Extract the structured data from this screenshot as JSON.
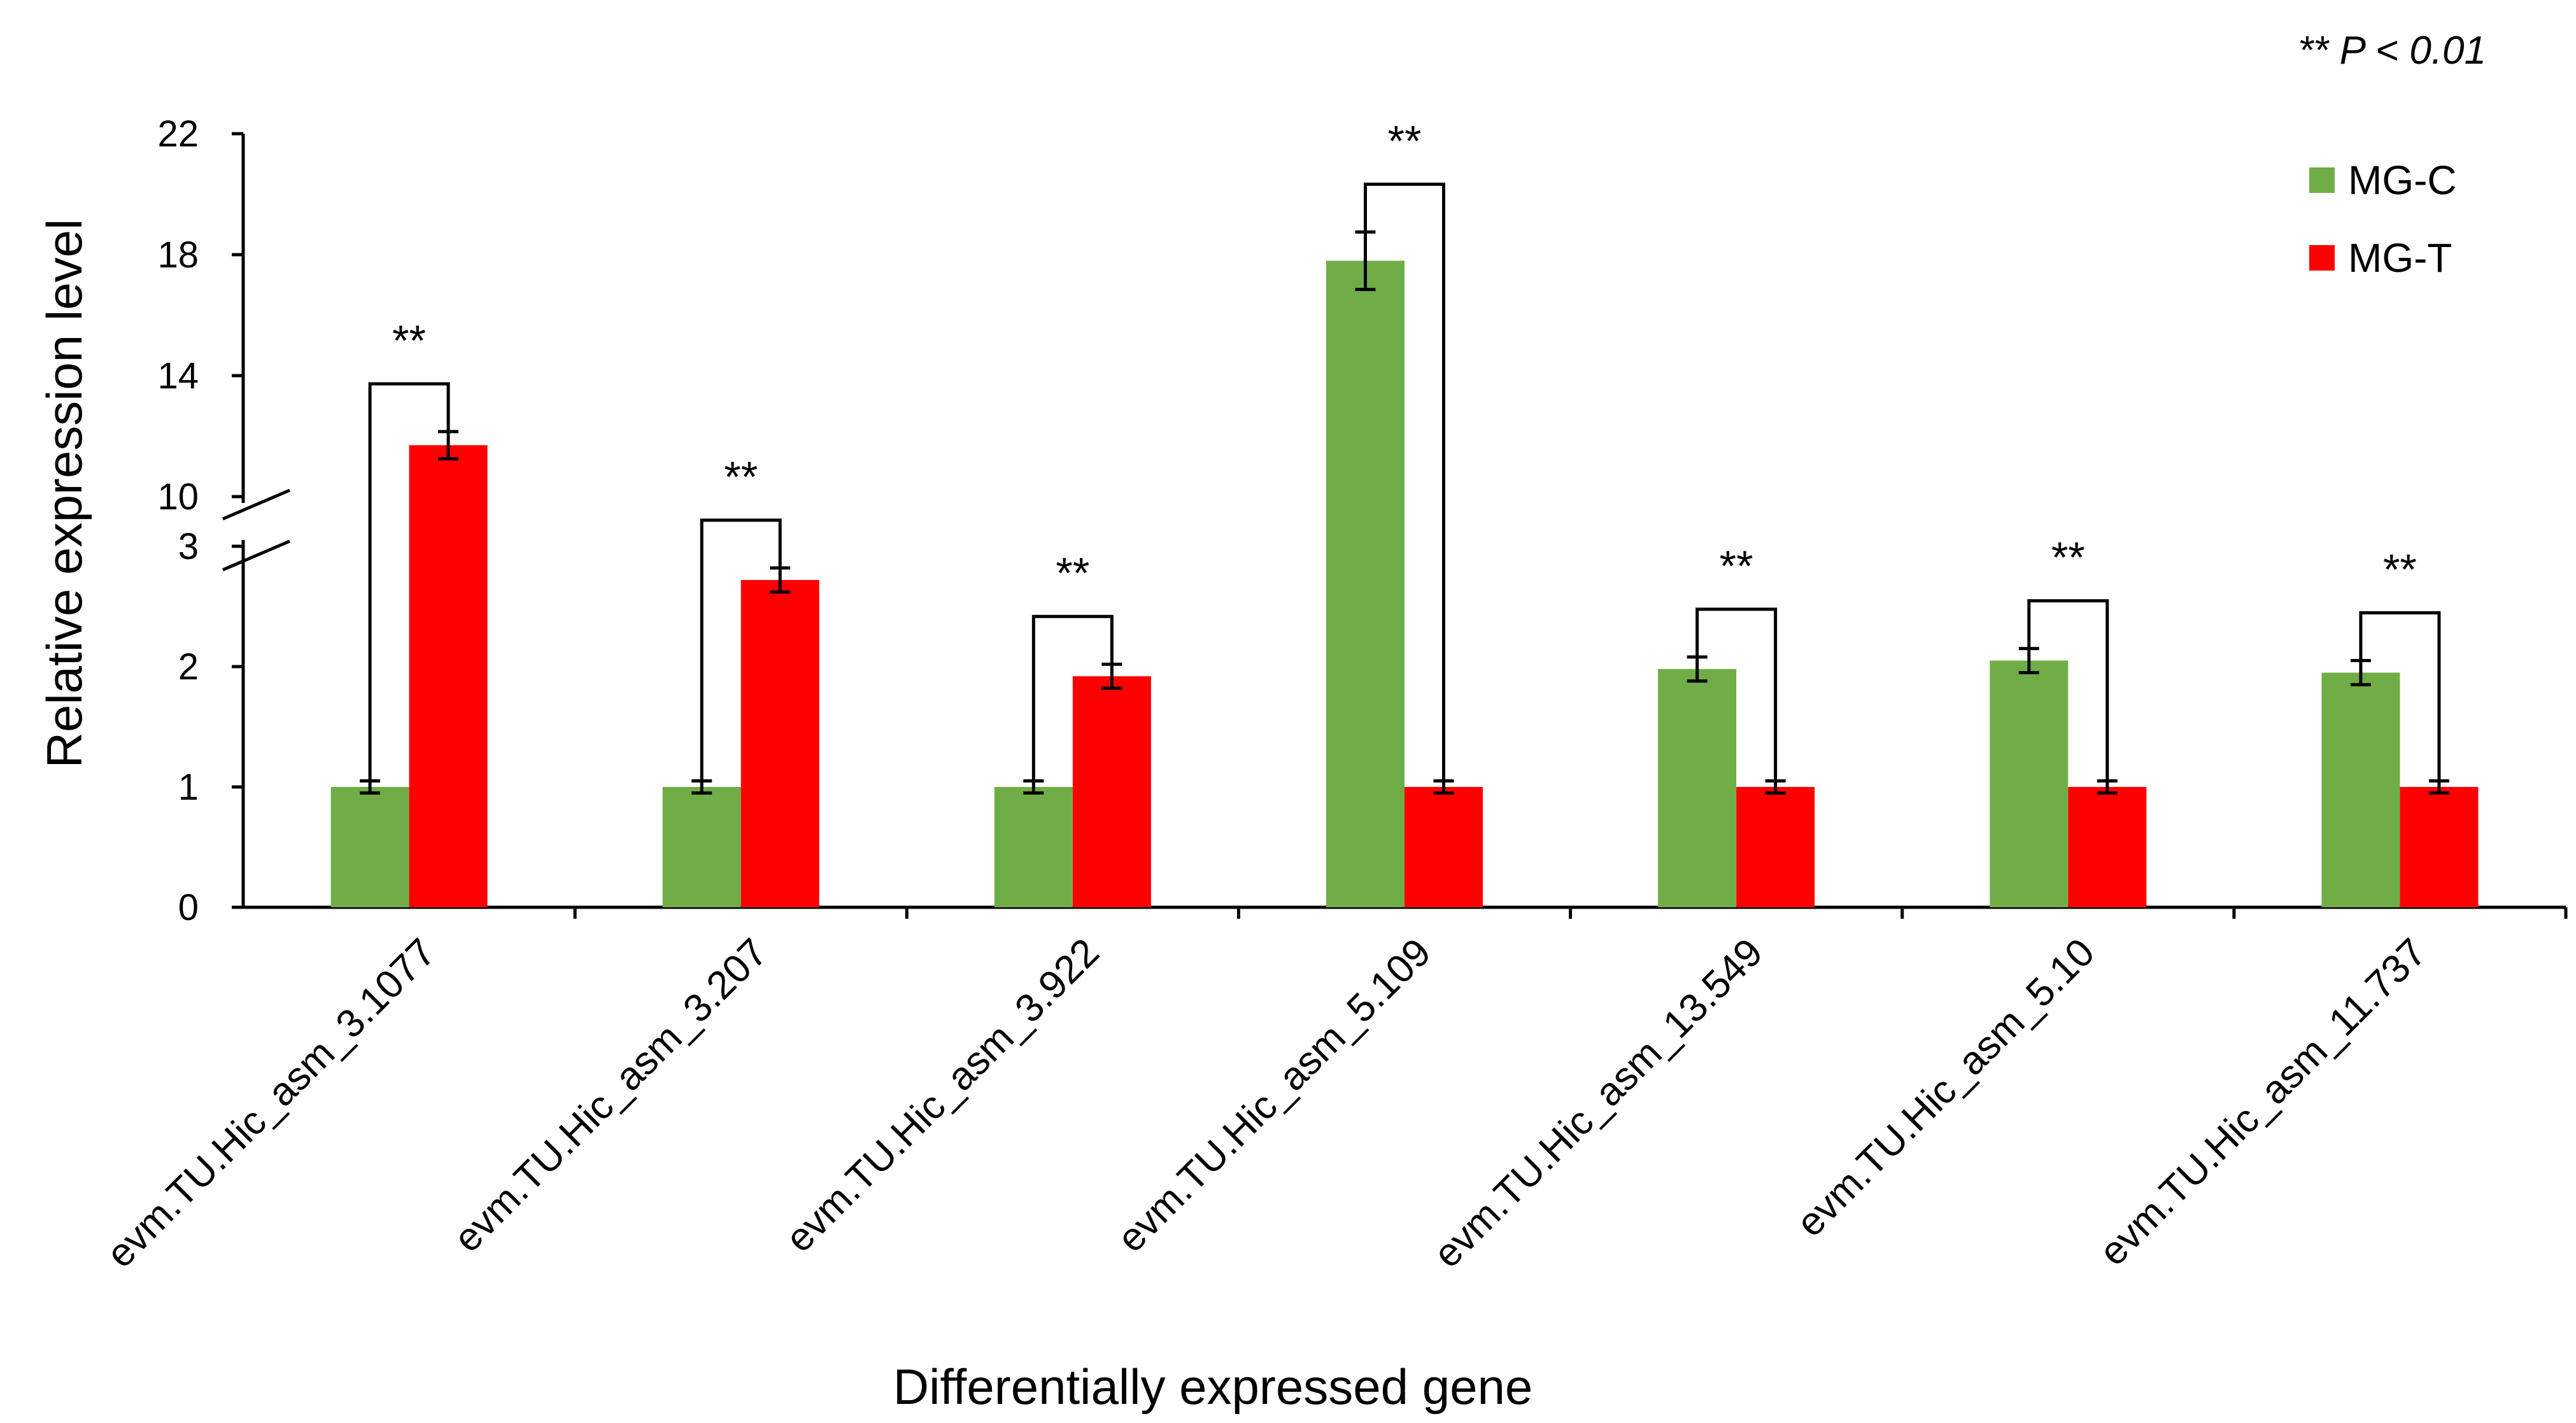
{
  "chart_data": {
    "type": "bar",
    "title": "",
    "xlabel": "Differentially expressed gene",
    "ylabel": "Relative expression level",
    "significance_note": "** P < 0.01",
    "significance_marker": "**",
    "categories": [
      "evm.TU.Hic_asm_3.1077",
      "evm.TU.Hic_asm_3.207",
      "evm.TU.Hic_asm_3.922",
      "evm.TU.Hic_asm_5.109",
      "evm.TU.Hic_asm_13.549",
      "evm.TU.Hic_asm_5.10",
      "evm.TU.Hic_asm_11.737"
    ],
    "series": [
      {
        "name": "MG-C",
        "color": "#70AD47",
        "values": [
          1.0,
          1.0,
          1.0,
          17.8,
          1.98,
          2.05,
          1.95
        ],
        "errors": [
          0.05,
          0.05,
          0.05,
          0.95,
          0.1,
          0.1,
          0.1
        ]
      },
      {
        "name": "MG-T",
        "color": "#FF0000",
        "values": [
          11.7,
          2.72,
          1.92,
          1.0,
          1.0,
          1.0,
          1.0
        ],
        "errors": [
          0.45,
          0.1,
          0.1,
          0.05,
          0.05,
          0.05,
          0.05
        ]
      }
    ],
    "axis": {
      "broken": true,
      "lower_range": [
        0,
        3
      ],
      "upper_range": [
        10,
        22
      ],
      "lower_ticks": [
        "0",
        "1",
        "2",
        "3"
      ],
      "upper_ticks": [
        "10",
        "14",
        "18",
        "22"
      ]
    },
    "legend_position": "top-right",
    "grid": false
  }
}
